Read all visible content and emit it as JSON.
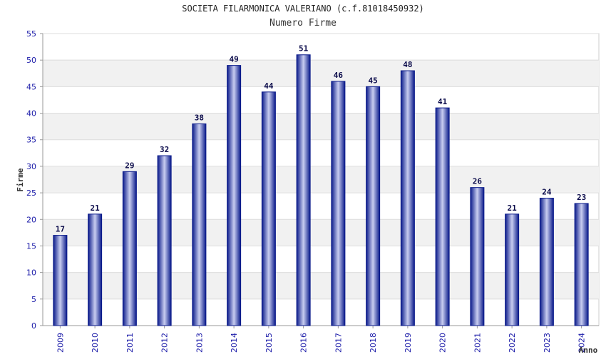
{
  "chart_data": {
    "type": "bar",
    "title": "SOCIETA FILARMONICA VALERIANO (c.f.81018450932)",
    "subtitle": "Numero Firme",
    "xlabel": "Anno",
    "ylabel": "Firme",
    "categories": [
      "2009",
      "2010",
      "2011",
      "2012",
      "2013",
      "2014",
      "2015",
      "2016",
      "2017",
      "2018",
      "2019",
      "2020",
      "2021",
      "2022",
      "2023",
      "2024"
    ],
    "values": [
      17,
      21,
      29,
      32,
      38,
      49,
      44,
      51,
      46,
      45,
      48,
      41,
      26,
      21,
      24,
      23
    ],
    "ylim": [
      0,
      55
    ],
    "yticks": [
      0,
      5,
      10,
      15,
      20,
      25,
      30,
      35,
      40,
      45,
      50,
      55
    ],
    "grid": true,
    "colors": {
      "bar_edge": "#0a1a8a",
      "bar_mid": "#c8cdf0",
      "tick_text": "#1a1aa8",
      "value_text": "#0a0a4a",
      "band": "#f1f1f1",
      "gridline": "#dddddd"
    }
  }
}
